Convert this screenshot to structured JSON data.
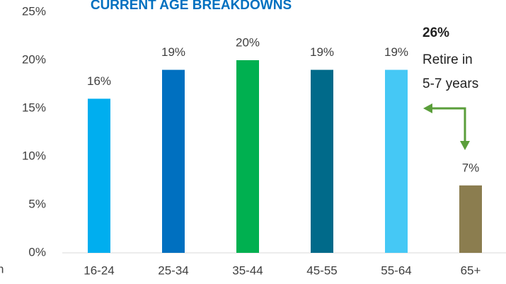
{
  "chart_data": {
    "type": "bar",
    "title": "CURRENT AGE BREAKDOWNS",
    "categories": [
      "16-24",
      "25-34",
      "35-44",
      "45-55",
      "55-64",
      "65+"
    ],
    "values": [
      16,
      19,
      20,
      19,
      19,
      7
    ],
    "value_labels": [
      "16%",
      "19%",
      "20%",
      "19%",
      "19%",
      "7%"
    ],
    "colors": [
      "#00aeef",
      "#0070c0",
      "#00b050",
      "#006a8a",
      "#45c8f5",
      "#8b7d4f"
    ],
    "ylim": [
      0,
      25
    ],
    "yticks": [
      {
        "value": 0,
        "label": "0%"
      },
      {
        "value": 5,
        "label": "5%"
      },
      {
        "value": 10,
        "label": "10%"
      },
      {
        "value": 15,
        "label": "15%"
      },
      {
        "value": 20,
        "label": "20%"
      },
      {
        "value": 25,
        "label": "25%"
      }
    ],
    "annotations": [
      "26%",
      "Retire in",
      "5-7 years",
      "n"
    ]
  }
}
